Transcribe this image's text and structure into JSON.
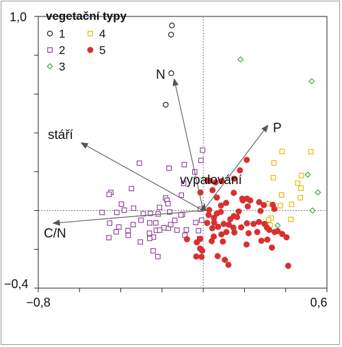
{
  "chart_data": {
    "type": "scatter",
    "xlim": [
      -0.8,
      0.6
    ],
    "ylim": [
      -0.4,
      1.0
    ],
    "x_tick_labels": [
      "−0,8",
      "0,6"
    ],
    "y_tick_labels": [
      "1,0",
      "−0,4"
    ],
    "legend": {
      "title": "vegetační typy",
      "placement": "top-left",
      "entries": [
        "1",
        "2",
        "3",
        "4",
        "5"
      ]
    },
    "series": [
      {
        "name": "1",
        "marker": "circle-open",
        "color": "#222222",
        "points": [
          [
            -0.152,
            0.953
          ],
          [
            -0.156,
            0.906
          ],
          [
            -0.155,
            0.707
          ],
          [
            -0.182,
            0.545
          ]
        ]
      },
      {
        "name": "2",
        "marker": "square-open",
        "color": "#8b3a96",
        "points": [
          [
            -0.003,
            0.311
          ],
          [
            -0.011,
            0.258
          ],
          [
            -0.092,
            0.236
          ],
          [
            -0.166,
            0.218
          ],
          [
            -0.31,
            0.244
          ],
          [
            -0.041,
            0.199
          ],
          [
            -0.095,
            0.139
          ],
          [
            -0.106,
            0.079
          ],
          [
            -0.183,
            0.065
          ],
          [
            -0.348,
            0.113
          ],
          [
            -0.448,
            0.093
          ],
          [
            -0.457,
            0.083
          ],
          [
            -0.397,
            0.033
          ],
          [
            -0.338,
            0.012
          ],
          [
            -0.383,
            0.002
          ],
          [
            -0.419,
            -0.01
          ],
          [
            -0.491,
            -0.01
          ],
          [
            -0.101,
            -0.02
          ],
          [
            -0.212,
            0.016
          ],
          [
            -0.176,
            0.053
          ],
          [
            -0.171,
            0.035
          ],
          [
            -0.163,
            -0.008
          ],
          [
            -0.108,
            -0.023
          ],
          [
            -0.138,
            -0.051
          ],
          [
            -0.036,
            -0.062
          ],
          [
            -0.008,
            -0.05
          ],
          [
            -0.014,
            0.007
          ],
          [
            -0.219,
            -0.018
          ],
          [
            -0.256,
            -0.015
          ],
          [
            -0.291,
            -0.017
          ],
          [
            -0.302,
            -0.05
          ],
          [
            -0.34,
            -0.073
          ],
          [
            -0.365,
            -0.103
          ],
          [
            -0.409,
            -0.085
          ],
          [
            -0.454,
            -0.065
          ],
          [
            -0.422,
            -0.11
          ],
          [
            -0.458,
            -0.14
          ],
          [
            -0.364,
            -0.128
          ],
          [
            -0.261,
            -0.117
          ],
          [
            -0.241,
            -0.137
          ],
          [
            -0.228,
            -0.102
          ],
          [
            -0.169,
            -0.091
          ],
          [
            -0.191,
            -0.089
          ],
          [
            -0.211,
            -0.101
          ],
          [
            -0.26,
            -0.064
          ],
          [
            -0.23,
            -0.064
          ],
          [
            -0.158,
            -0.073
          ],
          [
            -0.127,
            -0.101
          ],
          [
            -0.089,
            -0.127
          ],
          [
            -0.082,
            -0.1
          ],
          [
            -0.023,
            -0.104
          ],
          [
            -0.018,
            -0.145
          ],
          [
            -0.305,
            -0.162
          ],
          [
            -0.26,
            -0.144
          ],
          [
            -0.243,
            -0.208
          ],
          [
            -0.22,
            -0.237
          ]
        ]
      },
      {
        "name": "3",
        "marker": "diamond-open",
        "color": "#3a9a2f",
        "points": [
          [
            0.181,
            0.778
          ],
          [
            0.526,
            0.666
          ],
          [
            0.507,
            0.185
          ],
          [
            0.556,
            0.093
          ],
          [
            0.53,
            0.0
          ],
          [
            0.311,
            0.036
          ],
          [
            0.361,
            -0.077
          ]
        ]
      },
      {
        "name": "4",
        "marker": "square-open",
        "color": "#e3b400",
        "points": [
          [
            0.522,
            0.303
          ],
          [
            0.382,
            0.304
          ],
          [
            0.343,
            0.245
          ],
          [
            0.476,
            0.18
          ],
          [
            0.34,
            0.169
          ],
          [
            0.458,
            0.141
          ],
          [
            0.474,
            0.115
          ],
          [
            0.38,
            0.08
          ],
          [
            0.471,
            0.066
          ],
          [
            0.429,
            0.032
          ],
          [
            0.315,
            0.035
          ],
          [
            0.329,
            -0.039
          ],
          [
            0.324,
            -0.075
          ],
          [
            0.425,
            -0.046
          ],
          [
            0.374,
            0.025
          ],
          [
            0.317,
            -0.048
          ]
        ]
      },
      {
        "name": "5",
        "marker": "circle-filled",
        "color": "#d83030",
        "points": [
          [
            0.211,
            0.261
          ],
          [
            0.178,
            0.207
          ],
          [
            0.15,
            0.164
          ],
          [
            0.09,
            0.152
          ],
          [
            0.032,
            0.153
          ],
          [
            0.045,
            0.105
          ],
          [
            0.06,
            0.145
          ],
          [
            -0.014,
            0.093
          ],
          [
            0.066,
            0.067
          ],
          [
            0.148,
            0.091
          ],
          [
            0.189,
            0.061
          ],
          [
            0.192,
            0.052
          ],
          [
            0.212,
            0.061
          ],
          [
            0.228,
            0.052
          ],
          [
            0.216,
            0.021
          ],
          [
            0.271,
            0.043
          ],
          [
            0.294,
            0.028
          ],
          [
            0.337,
            0.03
          ],
          [
            0.345,
            0.008
          ],
          [
            0.278,
            -0.002
          ],
          [
            0.172,
            -0.005
          ],
          [
            0.164,
            -0.034
          ],
          [
            0.148,
            -0.029
          ],
          [
            0.131,
            -0.045
          ],
          [
            0.085,
            -0.007
          ],
          [
            0.086,
            0.026
          ],
          [
            0.111,
            0.039
          ],
          [
            0.029,
            0.003
          ],
          [
            0.026,
            -0.023
          ],
          [
            0.052,
            -0.038
          ],
          [
            0.019,
            -0.064
          ],
          [
            0.053,
            -0.062
          ],
          [
            0.044,
            -0.091
          ],
          [
            0.072,
            -0.084
          ],
          [
            0.099,
            -0.069
          ],
          [
            0.124,
            -0.073
          ],
          [
            0.146,
            -0.088
          ],
          [
            0.184,
            -0.087
          ],
          [
            0.212,
            -0.066
          ],
          [
            0.244,
            -0.069
          ],
          [
            0.27,
            -0.059
          ],
          [
            0.297,
            -0.069
          ],
          [
            0.309,
            -0.088
          ],
          [
            0.32,
            -0.1
          ],
          [
            0.346,
            -0.111
          ],
          [
            0.262,
            -0.111
          ],
          [
            0.22,
            -0.117
          ],
          [
            0.151,
            -0.113
          ],
          [
            0.112,
            -0.111
          ],
          [
            0.088,
            -0.123
          ],
          [
            0.051,
            -0.134
          ],
          [
            0.041,
            -0.158
          ],
          [
            0.095,
            -0.16
          ],
          [
            -0.014,
            -0.146
          ],
          [
            -0.031,
            -0.164
          ],
          [
            -0.015,
            -0.196
          ],
          [
            -0.034,
            -0.237
          ],
          [
            -0.005,
            -0.207
          ],
          [
            -0.008,
            -0.239
          ],
          [
            0.07,
            -0.235
          ],
          [
            0.105,
            -0.254
          ],
          [
            0.122,
            -0.28
          ],
          [
            0.21,
            -0.175
          ],
          [
            0.282,
            -0.156
          ],
          [
            0.311,
            -0.15
          ],
          [
            0.333,
            -0.191
          ],
          [
            0.404,
            -0.138
          ],
          [
            0.412,
            -0.285
          ],
          [
            0.383,
            -0.121
          ],
          [
            0.361,
            -0.106
          ],
          [
            -0.079,
            -0.148
          ],
          [
            0.066,
            -0.016
          ],
          [
            0.02,
            0.156
          ]
        ]
      }
    ],
    "vectors": [
      {
        "label": "N",
        "x": -0.142,
        "y": 0.682
      },
      {
        "label": "stáří",
        "x": -0.596,
        "y": 0.351
      },
      {
        "label": "P",
        "x": 0.316,
        "y": 0.443
      },
      {
        "label": "vypalování",
        "x": 0.007,
        "y": 0.038
      },
      {
        "label": "C/N",
        "x": -0.732,
        "y": -0.066
      }
    ]
  }
}
